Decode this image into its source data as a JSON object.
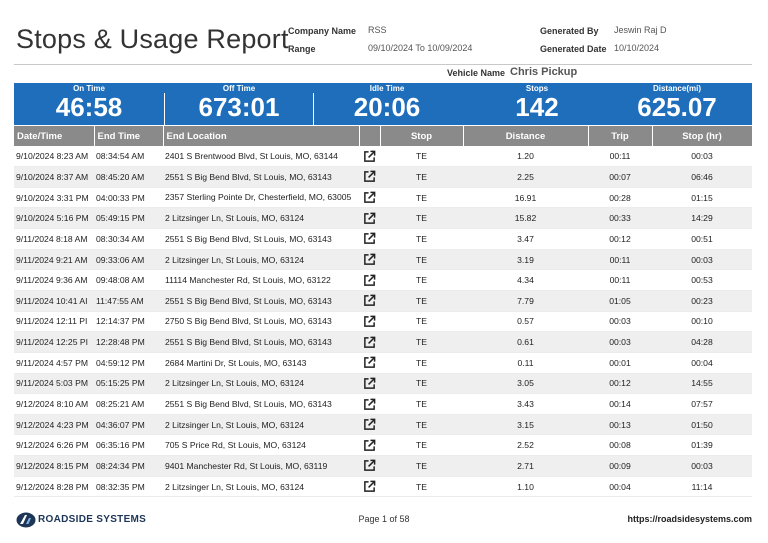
{
  "report": {
    "title": "Stops & Usage Report",
    "company_label": "Company Name",
    "company_value": "RSS",
    "range_label": "Range",
    "range_value": "09/10/2024 To 10/09/2024",
    "generated_by_label": "Generated By",
    "generated_by_value": "Jeswin Raj D",
    "generated_date_label": "Generated Date",
    "generated_date_value": "10/10/2024",
    "vehicle_label": "Vehicle Name",
    "vehicle_value": "Chris Pickup"
  },
  "stats": [
    {
      "label": "On Time",
      "value": "46:58"
    },
    {
      "label": "Off Time",
      "value": "673:01"
    },
    {
      "label": "Idle Time",
      "value": "20:06"
    },
    {
      "label": "Stops",
      "value": "142"
    },
    {
      "label": "Distance(mi)",
      "value": "625.07"
    }
  ],
  "table": {
    "headers": [
      "Date/Time",
      "End Time",
      "End Location",
      "",
      "Stop",
      "Distance",
      "Trip",
      "Stop (hr)"
    ],
    "rows": [
      [
        "9/10/2024 8:23 AM",
        "08:34:54 AM",
        "2401 S Brentwood Blvd, St Louis, MO, 63144",
        "TE",
        "1.20",
        "00:11",
        "00:03"
      ],
      [
        "9/10/2024 8:37 AM",
        "08:45:20 AM",
        "2551 S Big Bend Blvd, St Louis, MO, 63143",
        "TE",
        "2.25",
        "00:07",
        "06:46"
      ],
      [
        "9/10/2024 3:31 PM",
        "04:00:33 PM",
        "2357 Sterling Pointe Dr, Chesterfield, MO, 63005",
        "TE",
        "16.91",
        "00:28",
        "01:15"
      ],
      [
        "9/10/2024 5:16 PM",
        "05:49:15 PM",
        "2 Litzsinger Ln, St Louis, MO, 63124",
        "TE",
        "15.82",
        "00:33",
        "14:29"
      ],
      [
        "9/11/2024 8:18 AM",
        "08:30:34 AM",
        "2551 S Big Bend Blvd, St Louis, MO, 63143",
        "TE",
        "3.47",
        "00:12",
        "00:51"
      ],
      [
        "9/11/2024 9:21 AM",
        "09:33:06 AM",
        "2 Litzsinger Ln, St Louis, MO, 63124",
        "TE",
        "3.19",
        "00:11",
        "00:03"
      ],
      [
        "9/11/2024 9:36 AM",
        "09:48:08 AM",
        "11114 Manchester Rd, St Louis, MO, 63122",
        "TE",
        "4.34",
        "00:11",
        "00:53"
      ],
      [
        "9/11/2024 10:41 AI",
        "11:47:55 AM",
        "2551 S Big Bend Blvd, St Louis, MO, 63143",
        "TE",
        "7.79",
        "01:05",
        "00:23"
      ],
      [
        "9/11/2024 12:11 PI",
        "12:14:37 PM",
        "2750 S Big Bend Blvd, St Louis, MO, 63143",
        "TE",
        "0.57",
        "00:03",
        "00:10"
      ],
      [
        "9/11/2024 12:25 PI",
        "12:28:48 PM",
        "2551 S Big Bend Blvd, St Louis, MO, 63143",
        "TE",
        "0.61",
        "00:03",
        "04:28"
      ],
      [
        "9/11/2024 4:57 PM",
        "04:59:12 PM",
        "2684 Martini Dr, St Louis, MO, 63143",
        "TE",
        "0.11",
        "00:01",
        "00:04"
      ],
      [
        "9/11/2024 5:03 PM",
        "05:15:25 PM",
        "2 Litzsinger Ln, St Louis, MO, 63124",
        "TE",
        "3.05",
        "00:12",
        "14:55"
      ],
      [
        "9/12/2024 8:10 AM",
        "08:25:21 AM",
        "2551 S Big Bend Blvd, St Louis, MO, 63143",
        "TE",
        "3.43",
        "00:14",
        "07:57"
      ],
      [
        "9/12/2024 4:23 PM",
        "04:36:07 PM",
        "2 Litzsinger Ln, St Louis, MO, 63124",
        "TE",
        "3.15",
        "00:13",
        "01:50"
      ],
      [
        "9/12/2024 6:26 PM",
        "06:35:16 PM",
        "705 S Price Rd, St Louis, MO, 63124",
        "TE",
        "2.52",
        "00:08",
        "01:39"
      ],
      [
        "9/12/2024 8:15 PM",
        "08:24:34 PM",
        "9401 Manchester Rd, St Louis, MO, 63119",
        "TE",
        "2.71",
        "00:09",
        "00:03"
      ],
      [
        "9/12/2024 8:28 PM",
        "08:32:35 PM",
        "2 Litzsinger Ln, St Louis, MO, 63124",
        "TE",
        "1.10",
        "00:04",
        "11:14"
      ]
    ]
  },
  "footer": {
    "brand": "ROADSIDE SYSTEMS",
    "page": "Page 1 of 58",
    "url": "https://roadsidesystems.com"
  },
  "icons": {
    "row_link": "external-link-icon",
    "logo": "roadside-logo-icon"
  },
  "colors": {
    "stats_bar": "#1e6ebc",
    "table_header": "#8a8a8a",
    "row_alt": "#efefef"
  }
}
